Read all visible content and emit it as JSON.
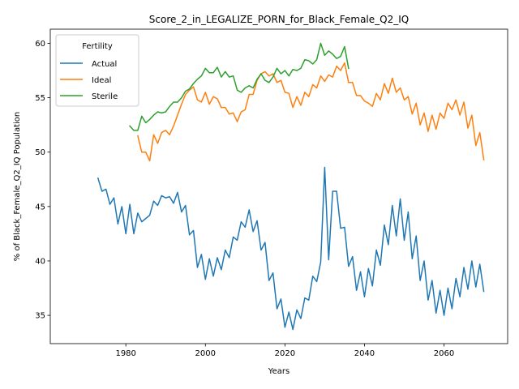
{
  "chart_data": {
    "type": "line",
    "title": "Score_2_in_LEGALIZE_PORN_for_Black_Female_Q2_IQ",
    "xlabel": "Years",
    "ylabel": "% of Black_Female_Q2_IQ Population",
    "xlim": [
      1961,
      2076
    ],
    "ylim": [
      32.4,
      61.3
    ],
    "xticks": [
      1980,
      2000,
      2020,
      2040,
      2060
    ],
    "yticks": [
      35,
      40,
      45,
      50,
      55,
      60
    ],
    "grid": false,
    "legend": {
      "title": "Fertility",
      "placement": "top-left"
    },
    "series": [
      {
        "name": "Actual",
        "color": "#1f77b4",
        "x": [
          1973,
          1974,
          1975,
          1976,
          1977,
          1978,
          1979,
          1980,
          1981,
          1982,
          1983,
          1984,
          1985,
          1986,
          1987,
          1988,
          1989,
          1990,
          1991,
          1992,
          1993,
          1994,
          1995,
          1996,
          1997,
          1998,
          1999,
          2000,
          2001,
          2002,
          2003,
          2004,
          2005,
          2006,
          2007,
          2008,
          2009,
          2010,
          2011,
          2012,
          2013,
          2014,
          2015,
          2016,
          2017,
          2018,
          2019,
          2020,
          2021,
          2022,
          2023,
          2024,
          2025,
          2026,
          2027,
          2028,
          2029,
          2030,
          2031,
          2032,
          2033,
          2034,
          2035,
          2036,
          2037,
          2038,
          2039,
          2040,
          2041,
          2042,
          2043,
          2044,
          2045,
          2046,
          2047,
          2048,
          2049,
          2050,
          2051,
          2052,
          2053,
          2054,
          2055,
          2056,
          2057,
          2058,
          2059,
          2060,
          2061,
          2062,
          2063,
          2064,
          2065,
          2066,
          2067,
          2068,
          2069,
          2070
        ],
        "values": [
          47.6,
          46.4,
          46.6,
          45.2,
          45.8,
          43.4,
          45.0,
          42.5,
          45.2,
          42.5,
          44.4,
          43.6,
          43.9,
          44.2,
          45.5,
          45.1,
          46.0,
          45.8,
          45.9,
          45.3,
          46.3,
          44.5,
          45.1,
          42.4,
          42.8,
          39.4,
          40.6,
          38.3,
          40.2,
          38.6,
          40.3,
          39.2,
          41.0,
          40.3,
          42.2,
          41.9,
          43.6,
          43.1,
          44.7,
          42.7,
          43.7,
          41.0,
          41.7,
          38.2,
          38.9,
          35.6,
          36.5,
          33.9,
          35.3,
          33.7,
          35.5,
          34.7,
          36.6,
          36.4,
          38.6,
          38.1,
          39.9,
          48.6,
          40.1,
          46.4,
          46.4,
          43.0,
          43.1,
          39.5,
          40.4,
          37.3,
          39.0,
          36.7,
          39.3,
          37.7,
          41.0,
          39.6,
          43.3,
          41.5,
          45.1,
          42.3,
          45.7,
          41.9,
          44.5,
          40.2,
          42.3,
          38.2,
          40.0,
          36.4,
          38.2,
          35.2,
          37.3,
          35.0,
          37.5,
          35.6,
          38.4,
          36.7,
          39.4,
          37.4,
          40.0,
          37.6,
          39.7,
          37.2
        ]
      },
      {
        "name": "Ideal",
        "color": "#ff7f0e",
        "x": [
          1983,
          1984,
          1985,
          1986,
          1987,
          1988,
          1989,
          1990,
          1991,
          1992,
          1993,
          1994,
          1995,
          1996,
          1997,
          1998,
          1999,
          2000,
          2001,
          2002,
          2003,
          2004,
          2005,
          2006,
          2007,
          2008,
          2009,
          2010,
          2011,
          2012,
          2013,
          2014,
          2015,
          2016,
          2017,
          2018,
          2019,
          2020,
          2021,
          2022,
          2023,
          2024,
          2025,
          2026,
          2027,
          2028,
          2029,
          2030,
          2031,
          2032,
          2033,
          2034,
          2035,
          2036,
          2037,
          2038,
          2039,
          2040,
          2041,
          2042,
          2043,
          2044,
          2045,
          2046,
          2047,
          2048,
          2049,
          2050,
          2051,
          2052,
          2053,
          2054,
          2055,
          2056,
          2057,
          2058,
          2059,
          2060,
          2061,
          2062,
          2063,
          2064,
          2065,
          2066,
          2067,
          2068,
          2069,
          2070
        ],
        "values": [
          51.5,
          50.0,
          50.0,
          49.2,
          51.6,
          50.8,
          51.8,
          52.0,
          51.6,
          52.4,
          53.4,
          54.4,
          55.3,
          55.7,
          56.0,
          54.8,
          54.6,
          55.5,
          54.4,
          55.1,
          54.9,
          54.1,
          54.1,
          53.5,
          53.6,
          52.8,
          53.7,
          53.9,
          55.3,
          55.3,
          56.6,
          57.2,
          57.4,
          57.0,
          57.2,
          56.4,
          56.6,
          55.5,
          55.4,
          54.1,
          55.1,
          54.3,
          55.5,
          55.1,
          56.2,
          55.9,
          57.0,
          56.5,
          57.1,
          56.9,
          57.9,
          57.5,
          58.2,
          56.4,
          56.4,
          55.2,
          55.2,
          54.7,
          54.5,
          54.2,
          55.4,
          54.8,
          56.3,
          55.4,
          56.8,
          55.5,
          55.9,
          54.8,
          55.1,
          53.5,
          54.5,
          52.5,
          53.6,
          51.9,
          53.4,
          52.1,
          53.6,
          53.1,
          54.5,
          53.9,
          54.8,
          53.4,
          54.6,
          52.2,
          53.4,
          50.6,
          51.8,
          49.3
        ]
      },
      {
        "name": "Sterile",
        "color": "#2ca02c",
        "x": [
          1981,
          1982,
          1983,
          1984,
          1985,
          1986,
          1987,
          1988,
          1989,
          1990,
          1991,
          1992,
          1993,
          1994,
          1995,
          1996,
          1997,
          1998,
          1999,
          2000,
          2001,
          2002,
          2003,
          2004,
          2005,
          2006,
          2007,
          2008,
          2009,
          2010,
          2011,
          2012,
          2013,
          2014,
          2015,
          2016,
          2017,
          2018,
          2019,
          2020,
          2021,
          2022,
          2023,
          2024,
          2025,
          2026,
          2027,
          2028,
          2029,
          2030,
          2031,
          2032,
          2033,
          2034,
          2035,
          2036
        ],
        "values": [
          52.4,
          52.0,
          52.0,
          53.3,
          52.7,
          53.0,
          53.4,
          53.7,
          53.6,
          53.7,
          54.2,
          54.6,
          54.6,
          55.0,
          55.6,
          55.8,
          56.3,
          56.7,
          57.0,
          57.7,
          57.3,
          57.3,
          57.8,
          56.9,
          57.4,
          56.9,
          57.0,
          55.7,
          55.5,
          55.9,
          56.1,
          55.9,
          56.7,
          57.2,
          56.6,
          56.4,
          56.9,
          57.7,
          57.2,
          57.5,
          57.0,
          57.6,
          57.5,
          57.7,
          58.5,
          58.4,
          58.1,
          58.5,
          60.0,
          58.9,
          59.3,
          59.0,
          58.6,
          58.8,
          59.7,
          57.7
        ]
      }
    ]
  }
}
